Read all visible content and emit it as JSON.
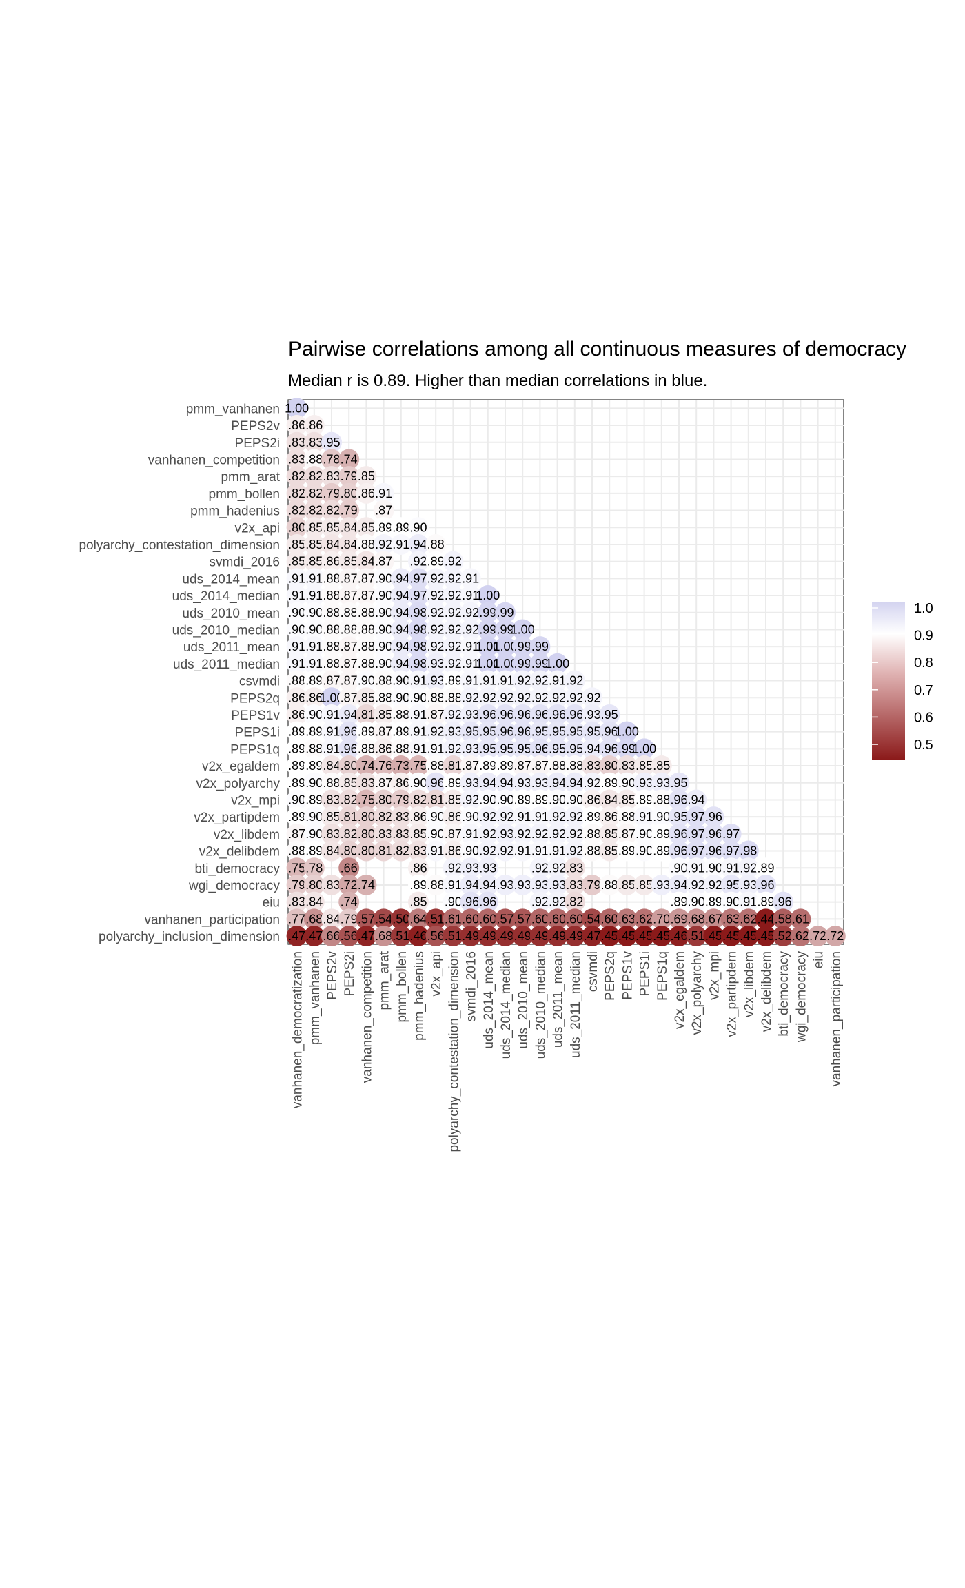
{
  "chart_data": {
    "type": "heatmap",
    "title": "Pairwise correlations among all continuous measures of democracy",
    "subtitle": "Median r is 0.89. Higher than median correlations in blue.",
    "median_r": 0.89,
    "row_labels": [
      "pmm_vanhanen",
      "PEPS2v",
      "PEPS2i",
      "vanhanen_competition",
      "pmm_arat",
      "pmm_bollen",
      "pmm_hadenius",
      "v2x_api",
      "polyarchy_contestation_dimension",
      "svmdi_2016",
      "uds_2014_mean",
      "uds_2014_median",
      "uds_2010_mean",
      "uds_2010_median",
      "uds_2011_mean",
      "uds_2011_median",
      "csvmdi",
      "PEPS2q",
      "PEPS1v",
      "PEPS1i",
      "PEPS1q",
      "v2x_egaldem",
      "v2x_polyarchy",
      "v2x_mpi",
      "v2x_partipdem",
      "v2x_libdem",
      "v2x_delibdem",
      "bti_democracy",
      "wgi_democracy",
      "eiu",
      "vanhanen_participation",
      "polyarchy_inclusion_dimension"
    ],
    "col_labels": [
      "vanhanen_democratization",
      "pmm_vanhanen",
      "PEPS2v",
      "PEPS2i",
      "vanhanen_competition",
      "pmm_arat",
      "pmm_bollen",
      "pmm_hadenius",
      "v2x_api",
      "polyarchy_contestation_dimension",
      "svmdi_2016",
      "uds_2014_mean",
      "uds_2014_median",
      "uds_2010_mean",
      "uds_2010_median",
      "uds_2011_mean",
      "uds_2011_median",
      "csvmdi",
      "PEPS2q",
      "PEPS1v",
      "PEPS1i",
      "PEPS1q",
      "v2x_egaldem",
      "v2x_polyarchy",
      "v2x_mpi",
      "v2x_partipdem",
      "v2x_libdem",
      "v2x_delibdem",
      "bti_democracy",
      "wgi_democracy",
      "eiu",
      "vanhanen_participation"
    ],
    "values": [
      [
        1.0
      ],
      [
        0.86,
        0.86
      ],
      [
        0.83,
        0.83,
        0.95
      ],
      [
        0.83,
        0.88,
        0.78,
        0.74
      ],
      [
        0.82,
        0.82,
        0.83,
        0.79,
        0.85
      ],
      [
        0.82,
        0.82,
        0.79,
        0.8,
        0.86,
        0.91
      ],
      [
        0.82,
        0.82,
        0.82,
        0.79,
        null,
        0.87
      ],
      [
        0.8,
        0.85,
        0.85,
        0.84,
        0.85,
        0.89,
        0.89,
        0.9
      ],
      [
        0.85,
        0.85,
        0.84,
        0.84,
        0.88,
        0.92,
        0.91,
        0.94,
        0.88
      ],
      [
        0.85,
        0.85,
        0.86,
        0.85,
        0.84,
        0.87,
        null,
        0.92,
        0.89,
        0.92
      ],
      [
        0.91,
        0.91,
        0.88,
        0.87,
        0.87,
        0.9,
        0.94,
        0.97,
        0.92,
        0.92,
        0.91
      ],
      [
        0.91,
        0.91,
        0.88,
        0.87,
        0.87,
        0.9,
        0.94,
        0.97,
        0.92,
        0.92,
        0.91,
        1.0
      ],
      [
        0.9,
        0.9,
        0.88,
        0.88,
        0.88,
        0.9,
        0.94,
        0.98,
        0.92,
        0.92,
        0.92,
        0.99,
        0.99
      ],
      [
        0.9,
        0.9,
        0.88,
        0.88,
        0.88,
        0.9,
        0.94,
        0.98,
        0.92,
        0.92,
        0.92,
        0.99,
        0.99,
        1.0
      ],
      [
        0.91,
        0.91,
        0.88,
        0.87,
        0.88,
        0.9,
        0.94,
        0.98,
        0.92,
        0.92,
        0.91,
        1.0,
        1.0,
        0.99,
        0.99
      ],
      [
        0.91,
        0.91,
        0.88,
        0.87,
        0.88,
        0.9,
        0.94,
        0.98,
        0.93,
        0.92,
        0.91,
        1.0,
        1.0,
        0.99,
        0.99,
        1.0
      ],
      [
        0.88,
        0.89,
        0.87,
        0.87,
        0.9,
        0.88,
        0.9,
        0.91,
        0.93,
        0.89,
        0.91,
        0.91,
        0.91,
        0.92,
        0.92,
        0.91,
        0.92
      ],
      [
        0.86,
        0.86,
        1.0,
        0.87,
        0.85,
        0.88,
        0.9,
        0.9,
        0.88,
        0.88,
        0.92,
        0.92,
        0.92,
        0.92,
        0.92,
        0.92,
        0.92,
        0.92
      ],
      [
        0.86,
        0.9,
        0.91,
        0.94,
        0.81,
        0.85,
        0.88,
        0.91,
        0.87,
        0.92,
        0.93,
        0.96,
        0.96,
        0.96,
        0.96,
        0.96,
        0.96,
        0.93,
        0.95
      ],
      [
        0.89,
        0.89,
        0.91,
        0.96,
        0.89,
        0.87,
        0.89,
        0.91,
        0.92,
        0.93,
        0.95,
        0.95,
        0.96,
        0.96,
        0.95,
        0.95,
        0.95,
        0.95,
        0.96,
        1.0
      ],
      [
        0.89,
        0.88,
        0.91,
        0.96,
        0.88,
        0.86,
        0.88,
        0.91,
        0.91,
        0.92,
        0.93,
        0.95,
        0.95,
        0.95,
        0.96,
        0.95,
        0.95,
        0.94,
        0.96,
        0.99,
        1.0
      ],
      [
        0.89,
        0.89,
        0.84,
        0.8,
        0.74,
        0.76,
        0.73,
        0.75,
        0.88,
        0.81,
        0.87,
        0.89,
        0.89,
        0.87,
        0.87,
        0.88,
        0.88,
        0.83,
        0.8,
        0.83,
        0.85,
        0.85
      ],
      [
        0.89,
        0.9,
        0.88,
        0.85,
        0.83,
        0.87,
        0.86,
        0.9,
        0.96,
        0.89,
        0.93,
        0.94,
        0.94,
        0.93,
        0.93,
        0.94,
        0.94,
        0.92,
        0.89,
        0.9,
        0.93,
        0.93,
        0.95
      ],
      [
        0.9,
        0.89,
        0.83,
        0.82,
        0.75,
        0.8,
        0.79,
        0.82,
        0.81,
        0.85,
        0.92,
        0.9,
        0.9,
        0.89,
        0.89,
        0.9,
        0.9,
        0.86,
        0.84,
        0.85,
        0.89,
        0.88,
        0.96,
        0.94
      ],
      [
        0.89,
        0.9,
        0.85,
        0.81,
        0.8,
        0.82,
        0.83,
        0.86,
        0.9,
        0.86,
        0.9,
        0.92,
        0.92,
        0.91,
        0.91,
        0.92,
        0.92,
        0.89,
        0.86,
        0.88,
        0.91,
        0.9,
        0.95,
        0.97,
        0.96
      ],
      [
        0.87,
        0.9,
        0.83,
        0.82,
        0.8,
        0.83,
        0.83,
        0.85,
        0.9,
        0.87,
        0.91,
        0.92,
        0.93,
        0.92,
        0.92,
        0.92,
        0.92,
        0.88,
        0.85,
        0.87,
        0.9,
        0.89,
        0.96,
        0.97,
        0.96,
        0.97
      ],
      [
        0.88,
        0.89,
        0.84,
        0.8,
        0.8,
        0.81,
        0.82,
        0.83,
        0.91,
        0.86,
        0.9,
        0.92,
        0.92,
        0.91,
        0.91,
        0.91,
        0.92,
        0.88,
        0.85,
        0.89,
        0.9,
        0.89,
        0.96,
        0.97,
        0.96,
        0.97,
        0.98
      ],
      [
        0.75,
        0.78,
        null,
        0.66,
        null,
        null,
        null,
        0.86,
        null,
        0.92,
        0.93,
        0.93,
        null,
        null,
        0.92,
        0.92,
        0.83,
        null,
        null,
        null,
        null,
        null,
        0.9,
        0.91,
        0.9,
        0.91,
        0.92,
        0.89
      ],
      [
        0.79,
        0.8,
        0.83,
        0.72,
        0.74,
        null,
        null,
        0.89,
        0.88,
        0.91,
        0.94,
        0.94,
        0.93,
        0.93,
        0.93,
        0.93,
        0.83,
        0.79,
        0.88,
        0.85,
        0.85,
        0.93,
        0.94,
        0.92,
        0.92,
        0.95,
        0.93,
        0.96
      ],
      [
        0.83,
        0.84,
        null,
        0.74,
        null,
        null,
        null,
        0.85,
        null,
        0.9,
        0.96,
        0.96,
        null,
        null,
        0.92,
        0.92,
        0.82,
        null,
        null,
        null,
        null,
        null,
        0.89,
        0.9,
        0.89,
        0.9,
        0.91,
        0.89,
        0.96
      ],
      [
        0.77,
        0.68,
        0.84,
        0.79,
        0.57,
        0.54,
        0.5,
        0.64,
        0.51,
        0.61,
        0.6,
        0.6,
        0.57,
        0.57,
        0.6,
        0.6,
        0.6,
        0.54,
        0.6,
        0.63,
        0.62,
        0.7,
        0.69,
        0.68,
        0.67,
        0.63,
        0.62,
        0.44,
        0.58,
        0.61
      ],
      [
        0.47,
        0.47,
        0.66,
        0.56,
        0.47,
        0.68,
        0.51,
        0.46,
        0.56,
        0.51,
        0.49,
        0.49,
        0.49,
        0.49,
        0.49,
        0.49,
        0.49,
        0.47,
        0.45,
        0.45,
        0.45,
        0.45,
        0.46,
        0.51,
        0.45,
        0.45,
        0.45,
        0.45,
        0.52,
        0.62,
        0.72,
        0.72
      ]
    ],
    "legend": {
      "ticks": [
        "1.0",
        "0.9",
        "0.8",
        "0.7",
        "0.6",
        "0.5"
      ],
      "position": "right"
    },
    "colors": {
      "low": "#8b1a1a",
      "mid": "#ffffff",
      "high": "#cfcfef"
    },
    "grid": true
  }
}
